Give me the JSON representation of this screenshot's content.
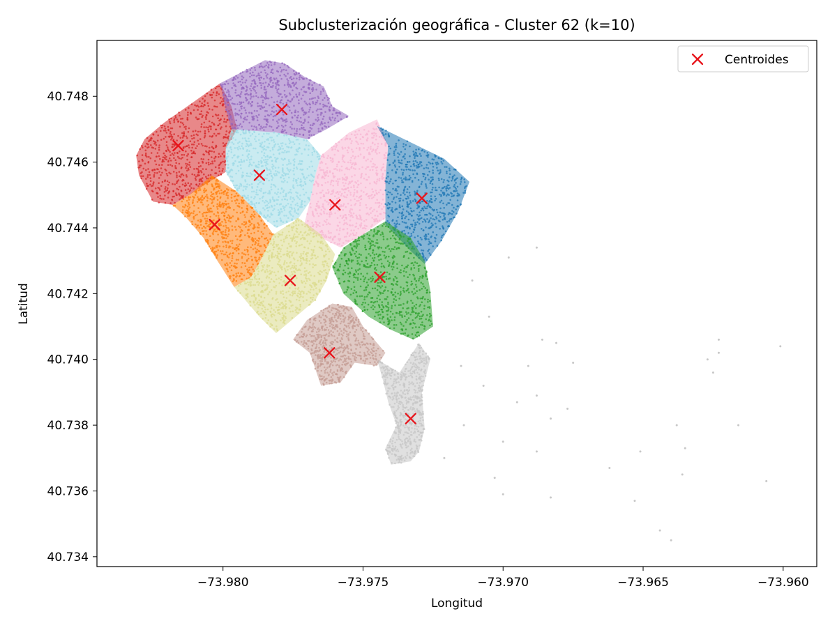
{
  "chart_data": {
    "type": "scatter",
    "title": "Subclusterización geográfica - Cluster 62 (k=10)",
    "xlabel": "Longitud",
    "ylabel": "Latitud",
    "xlim": [
      -73.9845,
      -73.9588
    ],
    "ylim": [
      40.7337,
      40.7497
    ],
    "x_ticks": [
      -73.98,
      -73.975,
      -73.97,
      -73.965,
      -73.96
    ],
    "x_tick_labels": [
      "−73.980",
      "−73.975",
      "−73.970",
      "−73.965",
      "−73.960"
    ],
    "y_ticks": [
      40.734,
      40.736,
      40.738,
      40.74,
      40.742,
      40.744,
      40.746,
      40.748
    ],
    "y_tick_labels": [
      "40.734",
      "40.736",
      "40.738",
      "40.740",
      "40.742",
      "40.744",
      "40.746",
      "40.748"
    ],
    "grid": false,
    "legend_position": "top-right",
    "legend": [
      {
        "label": "Centroides",
        "marker": "x",
        "color": "#e8141b"
      }
    ],
    "clusters": [
      {
        "id": 0,
        "color": "#d62728",
        "centroid": [
          -73.9816,
          40.7465
        ],
        "region": [
          [
            -73.9821,
            40.7472
          ],
          [
            -73.9801,
            40.7484
          ],
          [
            -73.9797,
            40.7477
          ],
          [
            -73.9795,
            40.747
          ],
          [
            -73.9799,
            40.7464
          ],
          [
            -73.9799,
            40.7457
          ],
          [
            -73.9805,
            40.7454
          ],
          [
            -73.9812,
            40.745
          ],
          [
            -73.9818,
            40.7447
          ],
          [
            -73.9825,
            40.7448
          ],
          [
            -73.983,
            40.7456
          ],
          [
            -73.9831,
            40.7462
          ],
          [
            -73.9828,
            40.7467
          ]
        ]
      },
      {
        "id": 1,
        "color": "#9467bd",
        "centroid": [
          -73.9779,
          40.7476
        ],
        "region": [
          [
            -73.9801,
            40.7484
          ],
          [
            -73.9785,
            40.7491
          ],
          [
            -73.9778,
            40.749
          ],
          [
            -73.9771,
            40.7486
          ],
          [
            -73.9764,
            40.7483
          ],
          [
            -73.9761,
            40.7477
          ],
          [
            -73.9755,
            40.7474
          ],
          [
            -73.9763,
            40.747
          ],
          [
            -73.977,
            40.7467
          ],
          [
            -73.9781,
            40.7469
          ],
          [
            -73.9797,
            40.747
          ],
          [
            -73.9799,
            40.7476
          ]
        ]
      },
      {
        "id": 2,
        "color": "#9edae5",
        "centroid": [
          -73.9787,
          40.7456
        ],
        "region": [
          [
            -73.9797,
            40.747
          ],
          [
            -73.9781,
            40.7469
          ],
          [
            -73.977,
            40.7467
          ],
          [
            -73.9765,
            40.7462
          ],
          [
            -73.9767,
            40.7456
          ],
          [
            -73.9769,
            40.7448
          ],
          [
            -73.9773,
            40.7443
          ],
          [
            -73.9781,
            40.744
          ],
          [
            -73.9787,
            40.7444
          ],
          [
            -73.9795,
            40.7451
          ],
          [
            -73.9799,
            40.7457
          ],
          [
            -73.9799,
            40.7464
          ]
        ]
      },
      {
        "id": 3,
        "color": "#f7b6d2",
        "centroid": [
          -73.976,
          40.7447
        ],
        "region": [
          [
            -73.9765,
            40.7462
          ],
          [
            -73.9755,
            40.7469
          ],
          [
            -73.9745,
            40.7473
          ],
          [
            -73.9741,
            40.7465
          ],
          [
            -73.9742,
            40.7455
          ],
          [
            -73.9742,
            40.7443
          ],
          [
            -73.975,
            40.7438
          ],
          [
            -73.9758,
            40.7434
          ],
          [
            -73.9765,
            40.7437
          ],
          [
            -73.9771,
            40.7441
          ],
          [
            -73.9769,
            40.7448
          ],
          [
            -73.9767,
            40.7456
          ]
        ]
      },
      {
        "id": 4,
        "color": "#1f77b4",
        "centroid": [
          -73.9729,
          40.7449
        ],
        "region": [
          [
            -73.9745,
            40.7471
          ],
          [
            -73.9733,
            40.7466
          ],
          [
            -73.9721,
            40.7461
          ],
          [
            -73.9712,
            40.7454
          ],
          [
            -73.9716,
            40.7445
          ],
          [
            -73.9722,
            40.7436
          ],
          [
            -73.9728,
            40.7429
          ],
          [
            -73.9733,
            40.7433
          ],
          [
            -73.9742,
            40.7441
          ],
          [
            -73.9742,
            40.7455
          ],
          [
            -73.9741,
            40.7465
          ]
        ]
      },
      {
        "id": 5,
        "color": "#ff7f0e",
        "centroid": [
          -73.9803,
          40.7441
        ],
        "region": [
          [
            -73.9804,
            40.7456
          ],
          [
            -73.9795,
            40.7451
          ],
          [
            -73.9787,
            40.7444
          ],
          [
            -73.9782,
            40.7438
          ],
          [
            -73.9786,
            40.7431
          ],
          [
            -73.979,
            40.7425
          ],
          [
            -73.9796,
            40.7422
          ],
          [
            -73.9802,
            40.743
          ],
          [
            -73.9807,
            40.7437
          ],
          [
            -73.9813,
            40.7443
          ],
          [
            -73.9818,
            40.7447
          ],
          [
            -73.9812,
            40.745
          ]
        ]
      },
      {
        "id": 6,
        "color": "#dbdb8d",
        "centroid": [
          -73.9776,
          40.7424
        ],
        "region": [
          [
            -73.9782,
            40.7438
          ],
          [
            -73.9773,
            40.7443
          ],
          [
            -73.9765,
            40.7438
          ],
          [
            -73.976,
            40.7432
          ],
          [
            -73.9763,
            40.7424
          ],
          [
            -73.9767,
            40.7418
          ],
          [
            -73.9774,
            40.7413
          ],
          [
            -73.9781,
            40.7408
          ],
          [
            -73.9787,
            40.7413
          ],
          [
            -73.9792,
            40.7418
          ],
          [
            -73.9796,
            40.7422
          ],
          [
            -73.979,
            40.7425
          ],
          [
            -73.9786,
            40.7431
          ]
        ]
      },
      {
        "id": 7,
        "color": "#2ca02c",
        "centroid": [
          -73.9744,
          40.7425
        ],
        "region": [
          [
            -73.9742,
            40.7442
          ],
          [
            -73.9733,
            40.7437
          ],
          [
            -73.9728,
            40.743
          ],
          [
            -73.9726,
            40.7421
          ],
          [
            -73.9725,
            40.741
          ],
          [
            -73.9732,
            40.7406
          ],
          [
            -73.974,
            40.7409
          ],
          [
            -73.9748,
            40.7413
          ],
          [
            -73.9757,
            40.742
          ],
          [
            -73.9761,
            40.7428
          ],
          [
            -73.9757,
            40.7434
          ],
          [
            -73.975,
            40.7438
          ]
        ]
      },
      {
        "id": 8,
        "color": "#c49c94",
        "centroid": [
          -73.9762,
          40.7402
        ],
        "region": [
          [
            -73.977,
            40.7412
          ],
          [
            -73.9761,
            40.7417
          ],
          [
            -73.9754,
            40.7416
          ],
          [
            -73.975,
            40.741
          ],
          [
            -73.9742,
            40.7402
          ],
          [
            -73.9745,
            40.7398
          ],
          [
            -73.9753,
            40.7399
          ],
          [
            -73.9758,
            40.7393
          ],
          [
            -73.9765,
            40.7392
          ],
          [
            -73.9767,
            40.7397
          ],
          [
            -73.9769,
            40.7402
          ],
          [
            -73.9775,
            40.7406
          ]
        ]
      },
      {
        "id": 9,
        "color": "#c7c7c7",
        "centroid": [
          -73.9733,
          40.7382
        ],
        "region": [
          [
            -73.9745,
            40.74
          ],
          [
            -73.9737,
            40.7396
          ],
          [
            -73.973,
            40.7405
          ],
          [
            -73.9726,
            40.74
          ],
          [
            -73.9729,
            40.739
          ],
          [
            -73.9728,
            40.7379
          ],
          [
            -73.973,
            40.7372
          ],
          [
            -73.9733,
            40.7369
          ],
          [
            -73.974,
            40.7368
          ],
          [
            -73.9742,
            40.7373
          ],
          [
            -73.9738,
            40.738
          ],
          [
            -73.9741,
            40.7387
          ],
          [
            -73.9743,
            40.7394
          ]
        ]
      }
    ],
    "outliers": [
      [
        -73.9711,
        40.7424
      ],
      [
        -73.9705,
        40.7413
      ],
      [
        -73.9698,
        40.7431
      ],
      [
        -73.9688,
        40.7434
      ],
      [
        -73.9686,
        40.7406
      ],
      [
        -73.9675,
        40.7399
      ],
      [
        -73.9677,
        40.7385
      ],
      [
        -73.9695,
        40.7387
      ],
      [
        -73.9688,
        40.7389
      ],
      [
        -73.9683,
        40.7382
      ],
      [
        -73.9688,
        40.7372
      ],
      [
        -73.9683,
        40.7358
      ],
      [
        -73.97,
        40.7359
      ],
      [
        -73.9703,
        40.7364
      ],
      [
        -73.9714,
        40.738
      ],
      [
        -73.9721,
        40.737
      ],
      [
        -73.97,
        40.7375
      ],
      [
        -73.9653,
        40.7357
      ],
      [
        -73.9651,
        40.7372
      ],
      [
        -73.9662,
        40.7367
      ],
      [
        -73.9644,
        40.7348
      ],
      [
        -73.964,
        40.7345
      ],
      [
        -73.9638,
        40.738
      ],
      [
        -73.9635,
        40.7373
      ],
      [
        -73.9636,
        40.7365
      ],
      [
        -73.9625,
        40.7396
      ],
      [
        -73.9627,
        40.74
      ],
      [
        -73.9623,
        40.7406
      ],
      [
        -73.9623,
        40.7402
      ],
      [
        -73.9616,
        40.738
      ],
      [
        -73.9606,
        40.7363
      ],
      [
        -73.9601,
        40.7404
      ],
      [
        -73.9681,
        40.7405
      ],
      [
        -73.9691,
        40.7398
      ],
      [
        -73.9707,
        40.7392
      ],
      [
        -73.9715,
        40.7398
      ]
    ]
  }
}
